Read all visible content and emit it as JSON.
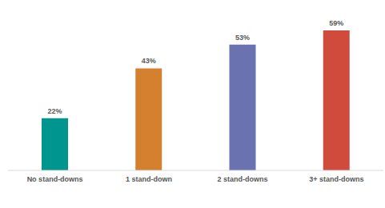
{
  "chart_data": {
    "type": "bar",
    "categories": [
      "No stand-downs",
      "1 stand-down",
      "2 stand-downs",
      "3+ stand-downs"
    ],
    "values": [
      22,
      43,
      53,
      59
    ],
    "value_labels": [
      "22%",
      "43%",
      "53%",
      "59%"
    ],
    "colors": [
      "#00968f",
      "#d4802e",
      "#6b72b0",
      "#d04b3c"
    ],
    "data_labels": true,
    "tick_labels": "x",
    "grid": false
  }
}
